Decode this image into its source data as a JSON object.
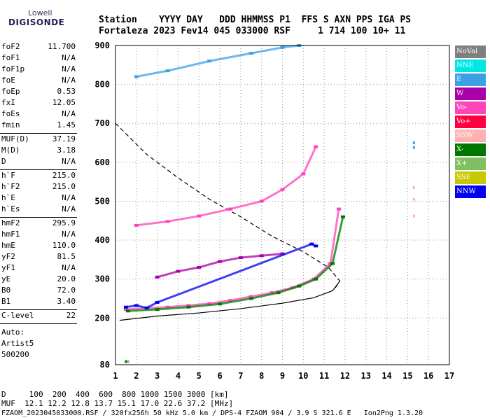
{
  "logo": {
    "top": "Lowell",
    "bottom": "DIGISONDE"
  },
  "header": {
    "line1": "Station    YYYY DAY   DDD HHMMSS P1  FFS S AXN PPS IGA PS",
    "line2": "Fortaleza 2023 Fev14 045 033000 RSF     1 714 100 10+ 11"
  },
  "params_group1": [
    {
      "name": "foF2",
      "value": "11.700"
    },
    {
      "name": "foF1",
      "value": "N/A"
    },
    {
      "name": "foF1p",
      "value": "N/A"
    },
    {
      "name": "foE",
      "value": "N/A"
    },
    {
      "name": "foEp",
      "value": "0.53"
    },
    {
      "name": "fxI",
      "value": "12.05"
    },
    {
      "name": "foEs",
      "value": "N/A"
    },
    {
      "name": "fmin",
      "value": "1.45"
    }
  ],
  "params_group2": [
    {
      "name": "MUF(D)",
      "value": "37.19"
    },
    {
      "name": "M(D)",
      "value": "3.18"
    },
    {
      "name": "D",
      "value": "N/A"
    }
  ],
  "params_group3": [
    {
      "name": "h`F",
      "value": "215.0"
    },
    {
      "name": "h`F2",
      "value": "215.0"
    },
    {
      "name": "h`E",
      "value": "N/A"
    },
    {
      "name": "h`Es",
      "value": "N/A"
    }
  ],
  "params_group4": [
    {
      "name": "hmF2",
      "value": "295.9"
    },
    {
      "name": "hmF1",
      "value": "N/A"
    },
    {
      "name": "hmE",
      "value": "110.0"
    },
    {
      "name": "yF2",
      "value": "81.5"
    },
    {
      "name": "yF1",
      "value": "N/A"
    },
    {
      "name": "yE",
      "value": "20.0"
    },
    {
      "name": "B0",
      "value": "72.0"
    },
    {
      "name": "B1",
      "value": "3.40"
    }
  ],
  "c_level": {
    "name": "C-level",
    "value": "22"
  },
  "auto": {
    "line1": "Auto:",
    "line2": "Artist5",
    "line3": "500200"
  },
  "legend": [
    {
      "label": "NoVal",
      "color": "#7f7f7f"
    },
    {
      "label": "NNE",
      "color": "#00e5e5"
    },
    {
      "label": "E",
      "color": "#3ca0e6"
    },
    {
      "label": "W",
      "color": "#aa00aa"
    },
    {
      "label": "Vo-",
      "color": "#ff44bb"
    },
    {
      "label": "Vo+",
      "color": "#ff0040"
    },
    {
      "label": "SSW",
      "color": "#ffb0b0"
    },
    {
      "label": "X-",
      "color": "#007700"
    },
    {
      "label": "X+",
      "color": "#80c060"
    },
    {
      "label": "SSE",
      "color": "#c8c800"
    },
    {
      "label": "NNW",
      "color": "#0000ee"
    }
  ],
  "chart_data": {
    "type": "scatter",
    "xlim": [
      1,
      17
    ],
    "ylim": [
      80,
      900
    ],
    "x_ticks": [
      "1",
      "2",
      "3",
      "4",
      "5",
      "6",
      "7",
      "8",
      "9",
      "10",
      "11",
      "12",
      "13",
      "14",
      "15",
      "16",
      "17"
    ],
    "y_ticks": [
      "80",
      "200",
      "300",
      "400",
      "500",
      "600",
      "700",
      "800",
      "900"
    ],
    "y_tick_values": [
      80,
      200,
      300,
      400,
      500,
      600,
      700,
      800,
      900
    ],
    "grid": "dotted",
    "series": [
      {
        "color": "#ff44bb",
        "x": [
          1.5,
          2.5,
          3.5,
          4.5,
          5.5,
          6.5,
          7.5,
          8.5,
          9.5,
          10.5,
          11.3,
          11.7
        ],
        "y": [
          222,
          225,
          228,
          232,
          237,
          245,
          255,
          265,
          278,
          300,
          340,
          480
        ]
      },
      {
        "color": "#007700",
        "x": [
          1.6,
          3,
          4.5,
          6,
          7.5,
          8.8,
          9.8,
          10.6,
          11.4,
          11.9
        ],
        "y": [
          218,
          222,
          228,
          236,
          250,
          265,
          282,
          300,
          340,
          460
        ]
      },
      {
        "color": "#aa00aa",
        "x": [
          3,
          4,
          5,
          6,
          7,
          8,
          9
        ],
        "y": [
          305,
          320,
          330,
          345,
          355,
          360,
          365
        ]
      },
      {
        "color": "#0000ee",
        "x": [
          1.5,
          2,
          2.5,
          3,
          10.4,
          10.6
        ],
        "y": [
          228,
          232,
          226,
          240,
          390,
          385
        ]
      },
      {
        "color": "#ff44bb",
        "x": [
          2,
          3.5,
          5,
          6.5,
          8,
          9,
          10,
          10.6
        ],
        "y": [
          438,
          448,
          462,
          480,
          500,
          530,
          570,
          640
        ]
      },
      {
        "color": "#3ca0e6",
        "x": [
          2,
          3.5,
          5.5,
          7.5,
          9,
          9.8
        ],
        "y": [
          820,
          835,
          860,
          880,
          895,
          900
        ]
      }
    ],
    "curves": [
      {
        "style": "dashed",
        "color": "#000000",
        "x": [
          1,
          2.5,
          4,
          5.5,
          7,
          8.5,
          10,
          11.2,
          11.75,
          11.5
        ],
        "y": [
          700,
          620,
          560,
          505,
          460,
          410,
          370,
          330,
          295,
          275
        ]
      },
      {
        "style": "solid",
        "color": "#000000",
        "x": [
          1.2,
          3,
          5,
          7,
          9,
          10.5,
          11.4,
          11.75
        ],
        "y": [
          194,
          205,
          213,
          224,
          238,
          252,
          270,
          295
        ]
      }
    ],
    "markers": [
      {
        "color": "#3ca0e6",
        "x": 15.3,
        "y": 650
      },
      {
        "color": "#3ca0e6",
        "x": 15.3,
        "y": 638
      },
      {
        "color": "#ffb0b0",
        "x": 15.3,
        "y": 535
      },
      {
        "color": "#ffb0b0",
        "x": 15.3,
        "y": 505
      },
      {
        "color": "#ffb0b0",
        "x": 15.3,
        "y": 462
      },
      {
        "color": "#007700",
        "x": 1.5,
        "y": 88
      },
      {
        "color": "#80c060",
        "x": 1.6,
        "y": 88
      }
    ]
  },
  "bottom": {
    "line1": "D     100  200  400  600  800 1000 1500 3000 [km]",
    "line2": "MUF  12.1 12.2 12.8 13.7 15.1 17.0 22.6 37.2 [MHz]",
    "line3": "FZAOM_2023045033000.RSF / 320fx256h 50 kHz 5.0 km / DPS-4 FZAOM 904 / 3.9 S 321.6 E   Ion2Png 1.3.20"
  }
}
